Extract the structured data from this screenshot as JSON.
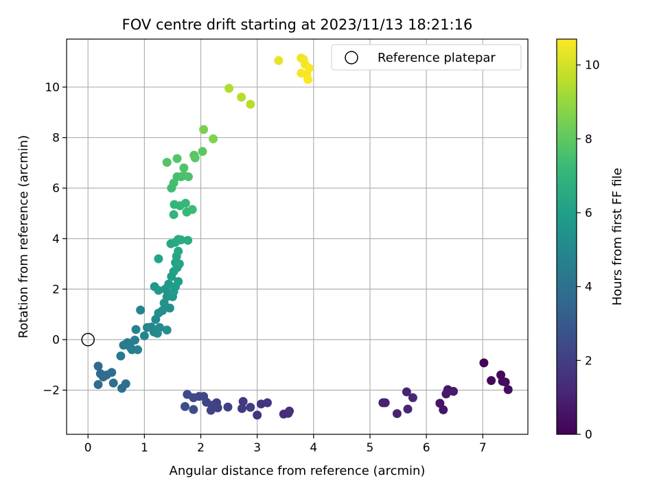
{
  "chart_data": {
    "type": "scatter",
    "title": "FOV centre drift starting at 2023/11/13 18:21:16",
    "xlabel": "Angular distance from reference (arcmin)",
    "ylabel": "Rotation from reference (arcmin)",
    "xlim": [
      -0.38,
      7.8
    ],
    "ylim": [
      -3.75,
      11.9
    ],
    "xticks": [
      0,
      1,
      2,
      3,
      4,
      5,
      6,
      7
    ],
    "xtick_labels": [
      "0",
      "1",
      "2",
      "3",
      "4",
      "5",
      "6",
      "7"
    ],
    "yticks": [
      -2,
      0,
      2,
      4,
      6,
      8,
      10
    ],
    "ytick_labels": [
      "−2",
      "0",
      "2",
      "4",
      "6",
      "8",
      "10"
    ],
    "grid": true,
    "legend": {
      "placement": "top-right",
      "entries": [
        "Reference platepar"
      ]
    },
    "reference_point": {
      "x": 0,
      "y": 0,
      "marker": "hollow-circle",
      "label": "Reference platepar"
    },
    "colorbar": {
      "label": "Hours from first FF file",
      "colormap": "viridis",
      "range": [
        0,
        10.7
      ],
      "ticks": [
        0,
        2,
        4,
        6,
        8,
        10
      ],
      "tick_labels": [
        "0",
        "2",
        "4",
        "6",
        "8",
        "10"
      ]
    },
    "colormap_stops": [
      "#440154",
      "#482878",
      "#3e4989",
      "#31688e",
      "#26828e",
      "#1f9e89",
      "#35b779",
      "#6ece58",
      "#b5de2b",
      "#fde725"
    ],
    "points": [
      {
        "x": 7.02,
        "y": -0.92,
        "c": 0.1
      },
      {
        "x": 7.15,
        "y": -1.62,
        "c": 0.2
      },
      {
        "x": 7.32,
        "y": -1.4,
        "c": 0.25
      },
      {
        "x": 7.35,
        "y": -1.65,
        "c": 0.3
      },
      {
        "x": 7.4,
        "y": -1.68,
        "c": 0.35
      },
      {
        "x": 7.45,
        "y": -1.98,
        "c": 0.4
      },
      {
        "x": 6.24,
        "y": -2.52,
        "c": 0.55
      },
      {
        "x": 6.3,
        "y": -2.78,
        "c": 0.6
      },
      {
        "x": 6.35,
        "y": -2.15,
        "c": 0.65
      },
      {
        "x": 6.38,
        "y": -1.98,
        "c": 0.7
      },
      {
        "x": 6.48,
        "y": -2.05,
        "c": 0.75
      },
      {
        "x": 5.23,
        "y": -2.5,
        "c": 0.9
      },
      {
        "x": 5.27,
        "y": -2.5,
        "c": 0.95
      },
      {
        "x": 5.48,
        "y": -2.93,
        "c": 1.0
      },
      {
        "x": 5.65,
        "y": -2.07,
        "c": 1.05
      },
      {
        "x": 5.67,
        "y": -2.75,
        "c": 1.1
      },
      {
        "x": 5.76,
        "y": -2.3,
        "c": 1.15
      },
      {
        "x": 3.47,
        "y": -2.95,
        "c": 1.4
      },
      {
        "x": 3.55,
        "y": -2.92,
        "c": 1.45
      },
      {
        "x": 3.57,
        "y": -2.83,
        "c": 1.5
      },
      {
        "x": 3.0,
        "y": -2.99,
        "c": 1.6
      },
      {
        "x": 3.07,
        "y": -2.55,
        "c": 1.65
      },
      {
        "x": 3.18,
        "y": -2.5,
        "c": 1.7
      },
      {
        "x": 2.75,
        "y": -2.45,
        "c": 1.8
      },
      {
        "x": 2.73,
        "y": -2.73,
        "c": 1.85
      },
      {
        "x": 2.88,
        "y": -2.68,
        "c": 1.9
      },
      {
        "x": 2.48,
        "y": -2.67,
        "c": 2.0
      },
      {
        "x": 2.28,
        "y": -2.5,
        "c": 2.05
      },
      {
        "x": 2.3,
        "y": -2.7,
        "c": 2.1
      },
      {
        "x": 2.2,
        "y": -2.6,
        "c": 2.15
      },
      {
        "x": 2.18,
        "y": -2.8,
        "c": 2.2
      },
      {
        "x": 2.1,
        "y": -2.48,
        "c": 2.25
      },
      {
        "x": 2.05,
        "y": -2.25,
        "c": 2.3
      },
      {
        "x": 1.97,
        "y": -2.25,
        "c": 2.35
      },
      {
        "x": 1.87,
        "y": -2.3,
        "c": 2.4
      },
      {
        "x": 1.76,
        "y": -2.17,
        "c": 2.45
      },
      {
        "x": 1.72,
        "y": -2.65,
        "c": 2.5
      },
      {
        "x": 1.87,
        "y": -2.77,
        "c": 2.55
      },
      {
        "x": 0.18,
        "y": -1.05,
        "c": 3.6
      },
      {
        "x": 0.22,
        "y": -1.35,
        "c": 3.65
      },
      {
        "x": 0.27,
        "y": -1.48,
        "c": 3.7
      },
      {
        "x": 0.18,
        "y": -1.78,
        "c": 3.75
      },
      {
        "x": 0.33,
        "y": -1.4,
        "c": 3.8
      },
      {
        "x": 0.42,
        "y": -1.3,
        "c": 3.85
      },
      {
        "x": 0.45,
        "y": -1.72,
        "c": 3.9
      },
      {
        "x": 0.6,
        "y": -1.93,
        "c": 3.95
      },
      {
        "x": 0.67,
        "y": -1.75,
        "c": 4.0
      },
      {
        "x": 0.58,
        "y": -0.65,
        "c": 4.4
      },
      {
        "x": 0.63,
        "y": -0.22,
        "c": 4.45
      },
      {
        "x": 0.7,
        "y": -0.12,
        "c": 4.5
      },
      {
        "x": 0.75,
        "y": -0.3,
        "c": 4.55
      },
      {
        "x": 0.78,
        "y": -0.4,
        "c": 4.6
      },
      {
        "x": 0.83,
        "y": -0.02,
        "c": 4.65
      },
      {
        "x": 0.88,
        "y": -0.4,
        "c": 4.7
      },
      {
        "x": 0.85,
        "y": 0.4,
        "c": 4.75
      },
      {
        "x": 0.93,
        "y": 1.17,
        "c": 4.8
      },
      {
        "x": 1.0,
        "y": 0.15,
        "c": 4.9
      },
      {
        "x": 1.05,
        "y": 0.48,
        "c": 4.95
      },
      {
        "x": 1.12,
        "y": 0.5,
        "c": 5.0
      },
      {
        "x": 1.17,
        "y": 0.3,
        "c": 5.05
      },
      {
        "x": 1.2,
        "y": 0.8,
        "c": 5.1
      },
      {
        "x": 1.23,
        "y": 0.25,
        "c": 5.15
      },
      {
        "x": 1.27,
        "y": 0.48,
        "c": 5.2
      },
      {
        "x": 1.25,
        "y": 1.05,
        "c": 5.25
      },
      {
        "x": 1.32,
        "y": 1.15,
        "c": 5.3
      },
      {
        "x": 1.4,
        "y": 0.38,
        "c": 5.35
      },
      {
        "x": 1.45,
        "y": 1.25,
        "c": 5.4
      },
      {
        "x": 1.35,
        "y": 1.45,
        "c": 5.45
      },
      {
        "x": 1.4,
        "y": 1.7,
        "c": 5.5
      },
      {
        "x": 1.45,
        "y": 1.85,
        "c": 5.55
      },
      {
        "x": 1.5,
        "y": 1.7,
        "c": 5.6
      },
      {
        "x": 1.37,
        "y": 2.0,
        "c": 5.65
      },
      {
        "x": 1.43,
        "y": 2.2,
        "c": 5.7
      },
      {
        "x": 1.18,
        "y": 2.1,
        "c": 5.75
      },
      {
        "x": 1.25,
        "y": 1.95,
        "c": 5.8
      },
      {
        "x": 1.52,
        "y": 1.9,
        "c": 5.85
      },
      {
        "x": 1.55,
        "y": 2.1,
        "c": 5.9
      },
      {
        "x": 1.6,
        "y": 2.3,
        "c": 5.95
      },
      {
        "x": 1.48,
        "y": 2.5,
        "c": 6.0
      },
      {
        "x": 1.52,
        "y": 2.7,
        "c": 6.05
      },
      {
        "x": 1.58,
        "y": 2.85,
        "c": 6.1
      },
      {
        "x": 1.55,
        "y": 3.05,
        "c": 6.15
      },
      {
        "x": 1.62,
        "y": 3.0,
        "c": 6.2
      },
      {
        "x": 1.25,
        "y": 3.2,
        "c": 6.25
      },
      {
        "x": 1.57,
        "y": 3.3,
        "c": 6.3
      },
      {
        "x": 1.6,
        "y": 3.5,
        "c": 6.35
      },
      {
        "x": 1.47,
        "y": 3.8,
        "c": 6.4
      },
      {
        "x": 1.55,
        "y": 3.85,
        "c": 6.45
      },
      {
        "x": 1.6,
        "y": 3.97,
        "c": 6.5
      },
      {
        "x": 1.65,
        "y": 3.95,
        "c": 6.55
      },
      {
        "x": 1.77,
        "y": 3.93,
        "c": 6.6
      },
      {
        "x": 1.52,
        "y": 4.95,
        "c": 7.0
      },
      {
        "x": 1.53,
        "y": 5.35,
        "c": 7.05
      },
      {
        "x": 1.63,
        "y": 5.3,
        "c": 7.1
      },
      {
        "x": 1.73,
        "y": 5.4,
        "c": 7.15
      },
      {
        "x": 1.75,
        "y": 5.05,
        "c": 7.2
      },
      {
        "x": 1.85,
        "y": 5.15,
        "c": 7.25
      },
      {
        "x": 1.48,
        "y": 6.0,
        "c": 7.4
      },
      {
        "x": 1.52,
        "y": 6.2,
        "c": 7.45
      },
      {
        "x": 1.58,
        "y": 6.45,
        "c": 7.5
      },
      {
        "x": 1.65,
        "y": 6.45,
        "c": 7.55
      },
      {
        "x": 1.7,
        "y": 6.5,
        "c": 7.6
      },
      {
        "x": 1.78,
        "y": 6.45,
        "c": 7.65
      },
      {
        "x": 1.7,
        "y": 6.8,
        "c": 7.7
      },
      {
        "x": 1.4,
        "y": 7.02,
        "c": 7.75
      },
      {
        "x": 1.58,
        "y": 7.17,
        "c": 7.8
      },
      {
        "x": 1.88,
        "y": 7.3,
        "c": 7.85
      },
      {
        "x": 1.9,
        "y": 7.2,
        "c": 7.9
      },
      {
        "x": 2.03,
        "y": 7.45,
        "c": 7.95
      },
      {
        "x": 2.05,
        "y": 8.32,
        "c": 8.5
      },
      {
        "x": 2.22,
        "y": 7.95,
        "c": 8.6
      },
      {
        "x": 2.5,
        "y": 9.95,
        "c": 9.4
      },
      {
        "x": 2.72,
        "y": 9.6,
        "c": 9.5
      },
      {
        "x": 2.88,
        "y": 9.32,
        "c": 9.55
      },
      {
        "x": 3.38,
        "y": 11.05,
        "c": 10.3
      },
      {
        "x": 3.78,
        "y": 11.15,
        "c": 10.45
      },
      {
        "x": 3.82,
        "y": 11.1,
        "c": 10.5
      },
      {
        "x": 3.85,
        "y": 10.9,
        "c": 10.55
      },
      {
        "x": 3.78,
        "y": 10.55,
        "c": 10.6
      },
      {
        "x": 3.88,
        "y": 10.5,
        "c": 10.62
      },
      {
        "x": 3.92,
        "y": 10.75,
        "c": 10.65
      },
      {
        "x": 3.9,
        "y": 10.3,
        "c": 10.7
      }
    ]
  }
}
